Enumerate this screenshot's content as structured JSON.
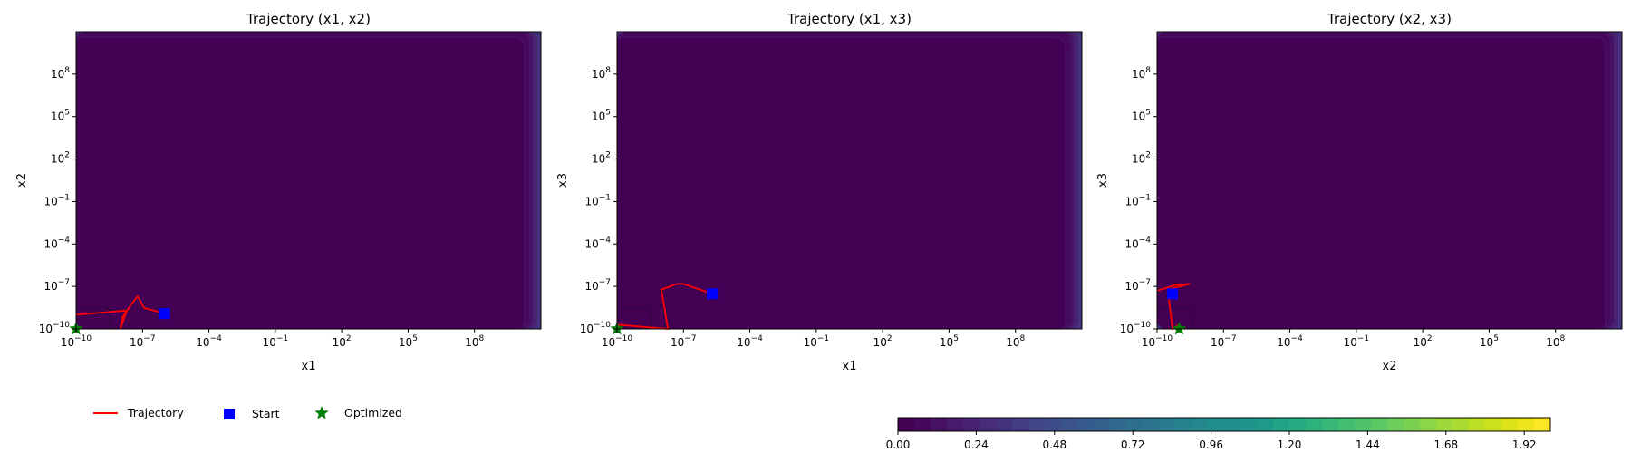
{
  "colors": {
    "background_plateau": "#440154",
    "trajectory": "#ff0000",
    "start_marker": "#0000ff",
    "optimized_marker": "#008000",
    "contour_line": "#2a0a3a",
    "colormap": [
      "#440154",
      "#46085c",
      "#471164",
      "#481a6c",
      "#482374",
      "#472c7a",
      "#46337f",
      "#443c84",
      "#414487",
      "#3e4c8a",
      "#3b528b",
      "#375a8c",
      "#34608d",
      "#31688e",
      "#2e6e8e",
      "#2c738e",
      "#297a8e",
      "#26828e",
      "#24878e",
      "#228d8d",
      "#1f948c",
      "#1e9a8a",
      "#20a386",
      "#25ab82",
      "#2db27d",
      "#37b878",
      "#42be71",
      "#4ec36b",
      "#5cc863",
      "#6ccd5a",
      "#7ad151",
      "#8bd646",
      "#9dd93b",
      "#aadc32",
      "#bddf26",
      "#cde11d",
      "#dde318",
      "#ece51b",
      "#fde725"
    ]
  },
  "chart_data": [
    {
      "type": "contour",
      "title": "Trajectory (x1, x2)",
      "xlabel": "x1",
      "ylabel": "x2",
      "xscale": "log",
      "yscale": "log",
      "xlim": [
        1e-10,
        100000000000.0
      ],
      "ylim": [
        1e-10,
        100000000000.0
      ],
      "xticks": [
        {
          "exp": "−10"
        },
        {
          "exp": "−7"
        },
        {
          "exp": "−4"
        },
        {
          "exp": "−1"
        },
        {
          "exp": "2"
        },
        {
          "exp": "5"
        },
        {
          "exp": "8"
        }
      ],
      "yticks": [
        {
          "exp": "−10"
        },
        {
          "exp": "−7"
        },
        {
          "exp": "−4"
        },
        {
          "exp": "−1"
        },
        {
          "exp": "2"
        },
        {
          "exp": "5"
        },
        {
          "exp": "8"
        }
      ],
      "tick_base": "10",
      "trajectory": [
        {
          "x": 1e-10,
          "y": 1e-09
        },
        {
          "x": 2e-08,
          "y": 2e-09
        },
        {
          "x": 1e-08,
          "y": 1e-10
        },
        {
          "x": 1.2e-08,
          "y": 6e-10
        },
        {
          "x": 3e-08,
          "y": 5e-09
        },
        {
          "x": 6e-08,
          "y": 2e-08
        },
        {
          "x": 1.2e-07,
          "y": 3e-09
        },
        {
          "x": 1e-06,
          "y": 1.2e-09
        }
      ],
      "start": {
        "x": 1e-06,
        "y": 1.2e-09
      },
      "optimized": {
        "x": 1e-10,
        "y": 1e-10
      }
    },
    {
      "type": "contour",
      "title": "Trajectory (x1, x3)",
      "xlabel": "x1",
      "ylabel": "x3",
      "xscale": "log",
      "yscale": "log",
      "xlim": [
        1e-10,
        100000000000.0
      ],
      "ylim": [
        1e-10,
        100000000000.0
      ],
      "xticks": [
        {
          "exp": "−10"
        },
        {
          "exp": "−7"
        },
        {
          "exp": "−4"
        },
        {
          "exp": "−1"
        },
        {
          "exp": "2"
        },
        {
          "exp": "5"
        },
        {
          "exp": "8"
        }
      ],
      "yticks": [
        {
          "exp": "−10"
        },
        {
          "exp": "−7"
        },
        {
          "exp": "−4"
        },
        {
          "exp": "−1"
        },
        {
          "exp": "2"
        },
        {
          "exp": "5"
        },
        {
          "exp": "8"
        }
      ],
      "tick_base": "10",
      "trajectory": [
        {
          "x": 1e-10,
          "y": 2e-10
        },
        {
          "x": 2e-08,
          "y": 1e-10
        },
        {
          "x": 1e-08,
          "y": 6e-08
        },
        {
          "x": 5e-08,
          "y": 1.5e-07
        },
        {
          "x": 1e-07,
          "y": 1.5e-07
        },
        {
          "x": 2e-06,
          "y": 3e-08
        }
      ],
      "start": {
        "x": 2e-06,
        "y": 3e-08
      },
      "optimized": {
        "x": 1e-10,
        "y": 1e-10
      }
    },
    {
      "type": "contour",
      "title": "Trajectory (x2, x3)",
      "xlabel": "x2",
      "ylabel": "x3",
      "xscale": "log",
      "yscale": "log",
      "xlim": [
        1e-10,
        100000000000.0
      ],
      "ylim": [
        1e-10,
        100000000000.0
      ],
      "xticks": [
        {
          "exp": "−10"
        },
        {
          "exp": "−7"
        },
        {
          "exp": "−4"
        },
        {
          "exp": "−1"
        },
        {
          "exp": "2"
        },
        {
          "exp": "5"
        },
        {
          "exp": "8"
        }
      ],
      "yticks": [
        {
          "exp": "−10"
        },
        {
          "exp": "−7"
        },
        {
          "exp": "−4"
        },
        {
          "exp": "−1"
        },
        {
          "exp": "2"
        },
        {
          "exp": "5"
        },
        {
          "exp": "8"
        }
      ],
      "tick_base": "10",
      "trajectory": [
        {
          "x": 1e-10,
          "y": 5e-08
        },
        {
          "x": 6e-10,
          "y": 1.2e-07
        },
        {
          "x": 3e-09,
          "y": 1.5e-07
        },
        {
          "x": 3e-10,
          "y": 6e-08
        },
        {
          "x": 5e-10,
          "y": 1e-10
        },
        {
          "x": 1e-09,
          "y": 2e-10
        }
      ],
      "start": {
        "x": 5e-10,
        "y": 3e-08
      },
      "optimized": {
        "x": 1e-09,
        "y": 1e-10
      }
    }
  ],
  "legend": {
    "placement": "bottom-left",
    "items": [
      {
        "label": "Trajectory",
        "marker": "line"
      },
      {
        "label": "Start",
        "marker": "square"
      },
      {
        "label": "Optimized",
        "marker": "star"
      }
    ]
  },
  "colorbar": {
    "vmin": 0,
    "vmax": 2.0,
    "levels": 40,
    "tick_labels": [
      "0.00",
      "0.24",
      "0.48",
      "0.72",
      "0.96",
      "1.20",
      "1.44",
      "1.68",
      "1.92"
    ],
    "tick_values": [
      0,
      0.24,
      0.48,
      0.72,
      0.96,
      1.2,
      1.44,
      1.68,
      1.92
    ]
  }
}
